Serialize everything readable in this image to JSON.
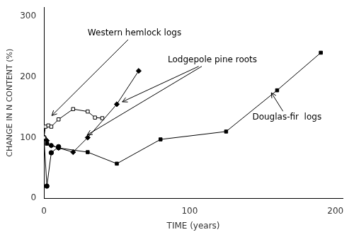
{
  "chart_data": {
    "type": "line",
    "xlabel": "TIME (years)",
    "ylabel": "CHANGE IN N CONTENT (%)",
    "xlim": [
      0,
      205
    ],
    "ylim": [
      0,
      315
    ],
    "xticks": [
      0,
      100,
      200
    ],
    "yticks": [
      0,
      100,
      200,
      300
    ],
    "grid": false,
    "series": [
      {
        "x": [
          0,
          1,
          3,
          5,
          10,
          20,
          30,
          35,
          40
        ],
        "values": [
          100,
          118,
          120,
          118,
          130,
          147,
          143,
          133,
          132
        ],
        "color": "black",
        "marker": "square-open"
      },
      {
        "x": [
          0,
          2,
          5,
          10,
          20,
          30,
          50,
          65
        ],
        "values": [
          100,
          95,
          87,
          83,
          76,
          100,
          155,
          210
        ],
        "color": "black",
        "marker": "diamond"
      },
      {
        "x": [
          0,
          2,
          5,
          10,
          30,
          50,
          80,
          125,
          160,
          190
        ],
        "values": [
          100,
          90,
          87,
          83,
          76,
          57,
          97,
          110,
          178,
          240
        ],
        "color": "black",
        "marker": "square"
      },
      {
        "x": [
          0,
          2,
          5,
          10
        ],
        "values": [
          100,
          20,
          75,
          85
        ],
        "color": "black",
        "marker": "circle"
      }
    ],
    "annotations": [
      {
        "text": "Western hemlock logs",
        "xy": [
          [
            4,
            133
          ]
        ],
        "xytext": [
          30,
          272
        ]
      },
      {
        "text": "Lodgepole pine roots",
        "xy": [
          [
            28,
            102
          ],
          [
            52,
            157
          ]
        ],
        "xytext": [
          85,
          228
        ]
      },
      {
        "text": "Douglas-fir  logs",
        "xy": [
          [
            155,
            178
          ]
        ],
        "xytext": [
          143,
          133
        ]
      }
    ]
  }
}
